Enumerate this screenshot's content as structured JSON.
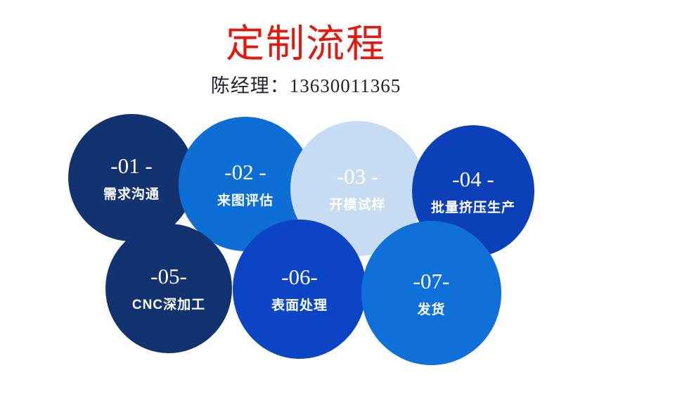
{
  "header": {
    "title": "定制流程",
    "title_color": "#e1190f",
    "contact": "陈经理：13630011365",
    "contact_color": "#21212d"
  },
  "process": {
    "steps": [
      {
        "number": "-01 -",
        "label": "需求沟通",
        "color": "#133370"
      },
      {
        "number": "-02 -",
        "label": "来图评估",
        "color": "#0d6fd6"
      },
      {
        "number": "-03 -",
        "label": "开模试样",
        "color": "#c7dcf2"
      },
      {
        "number": "-04 -",
        "label": "批量挤压生产",
        "color": "#0b40b8"
      },
      {
        "number": "-05-",
        "label": "CNC深加工",
        "color": "#133370"
      },
      {
        "number": "-06-",
        "label": "表面处理",
        "color": "#0c45c4"
      },
      {
        "number": "-07-",
        "label": "发货",
        "color": "#0f70d9"
      }
    ],
    "text_color": "#ffffff"
  }
}
